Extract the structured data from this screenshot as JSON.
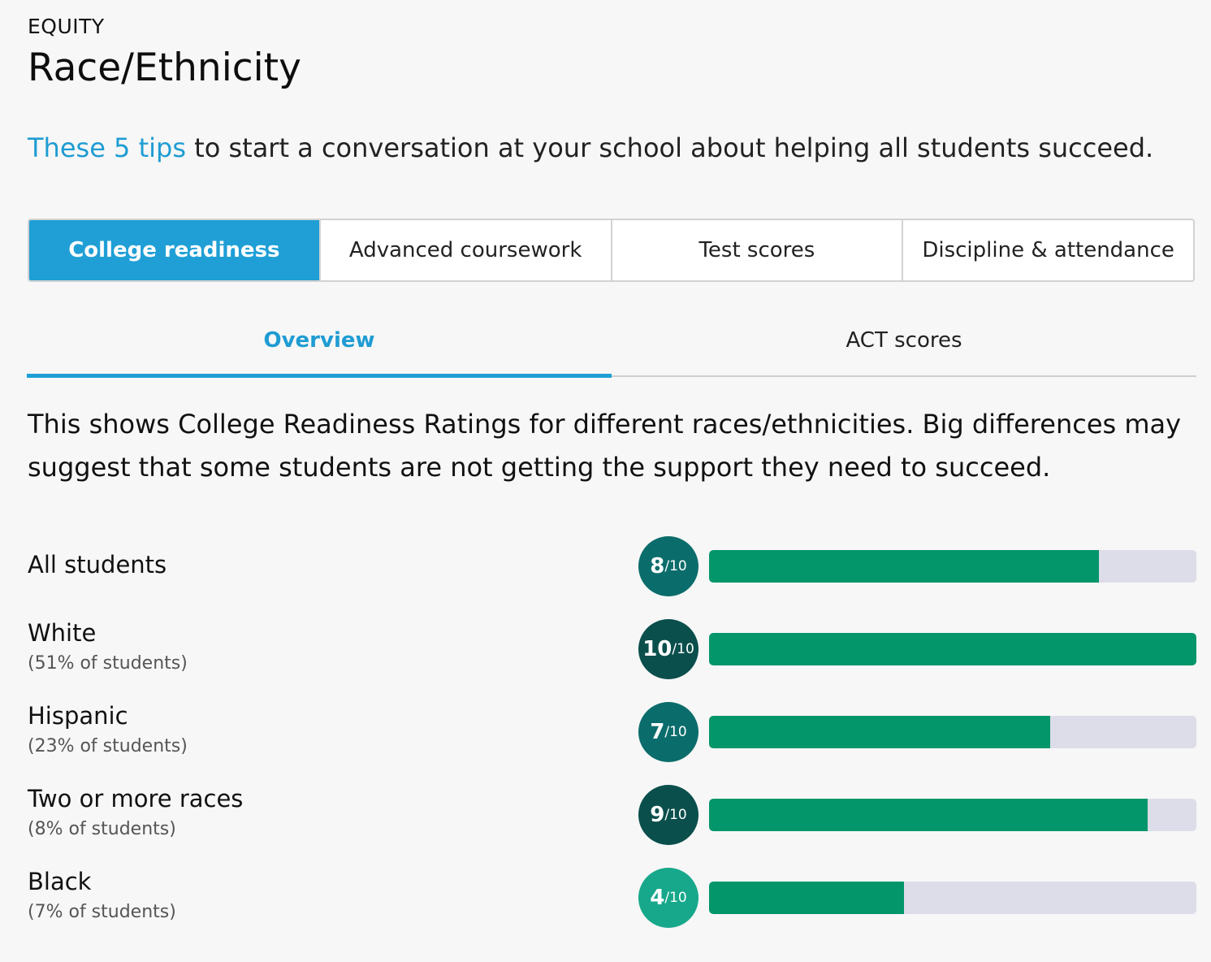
{
  "header": {
    "eyebrow": "EQUITY",
    "title": "Race/Ethnicity"
  },
  "tips": {
    "link_text": "These 5 tips",
    "rest_text": " to start a conversation at your school about helping all students succeed."
  },
  "category_tabs": [
    {
      "label": "College readiness",
      "active": true
    },
    {
      "label": "Advanced coursework",
      "active": false
    },
    {
      "label": "Test scores",
      "active": false
    },
    {
      "label": "Discipline & attendance",
      "active": false
    }
  ],
  "sub_tabs": [
    {
      "label": "Overview",
      "active": true
    },
    {
      "label": "ACT scores",
      "active": false
    }
  ],
  "description": "This shows College Readiness Ratings for different races/ethnicities. Big differences may suggest that some students are not getting the support they need to succeed.",
  "rating_scale": "/10",
  "groups": [
    {
      "name": "All students",
      "share": "",
      "rating": 8,
      "color": "#0b6d6b"
    },
    {
      "name": "White",
      "share": "(51% of students)",
      "rating": 10,
      "color": "#0a4f4c"
    },
    {
      "name": "Hispanic",
      "share": "(23% of students)",
      "rating": 7,
      "color": "#0b6d6b"
    },
    {
      "name": "Two or more races",
      "share": "(8% of students)",
      "rating": 9,
      "color": "#0a4f4c"
    },
    {
      "name": "Black",
      "share": "(7% of students)",
      "rating": 4,
      "color": "#17a88b"
    }
  ],
  "colors": {
    "accent": "#1f9fd6",
    "bar_fill": "#03966a",
    "bar_track": "#dcdde9"
  }
}
